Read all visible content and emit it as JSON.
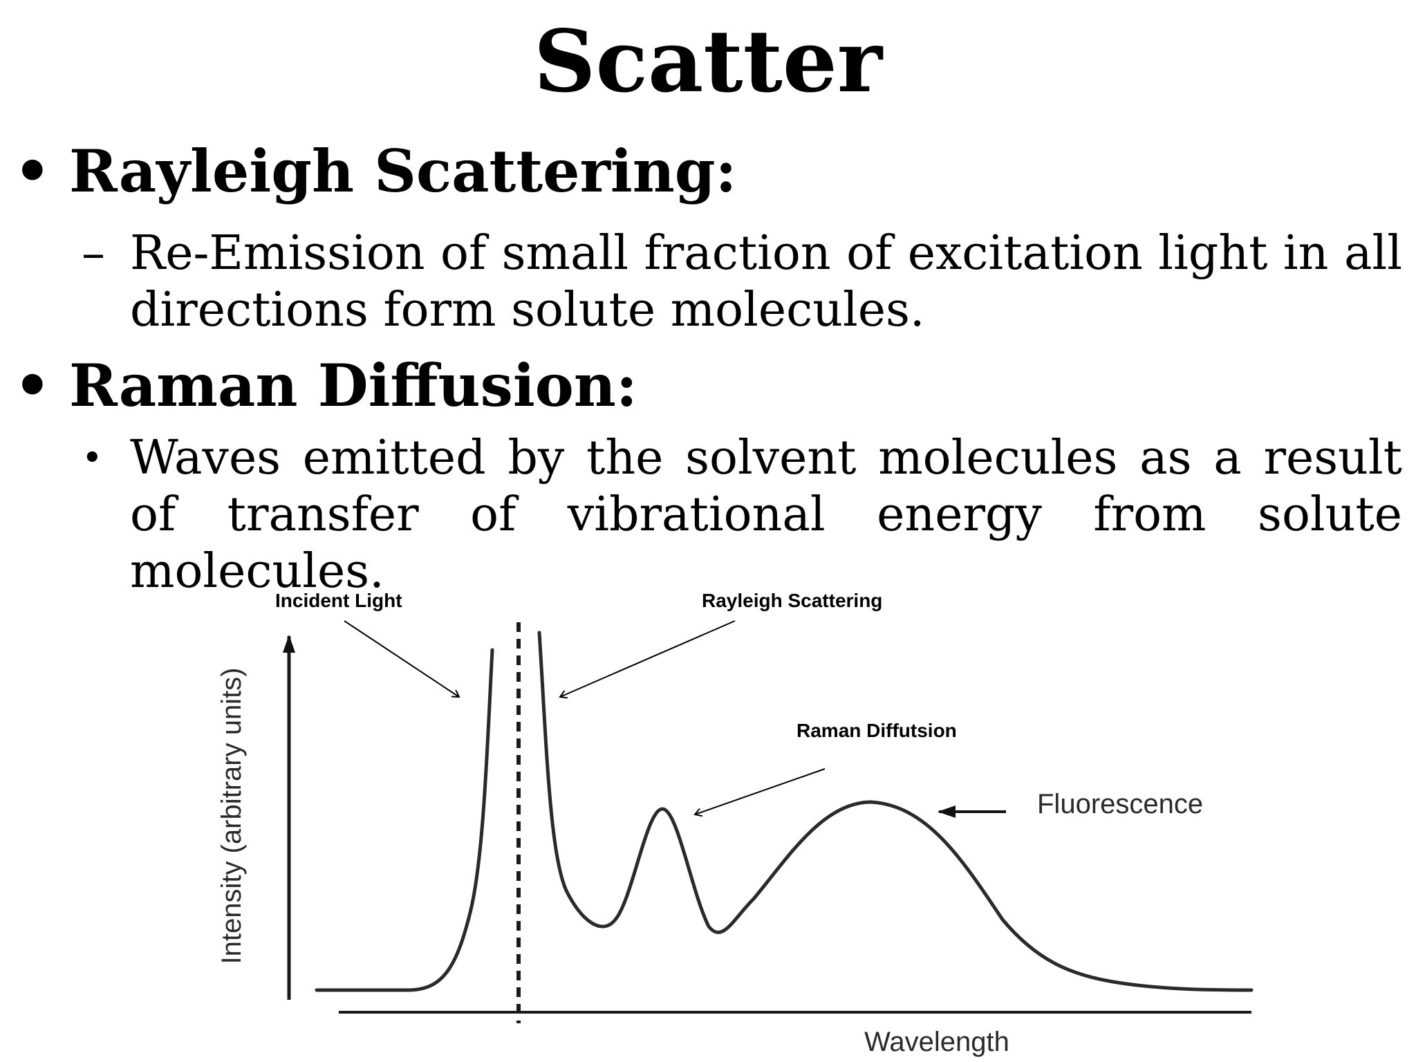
{
  "title": "Scatter",
  "bullets": [
    {
      "marker": "•",
      "heading": "Rayleigh Scattering:",
      "sub_marker": "–",
      "text": "Re-Emission of small fraction of excitation light in all directions form solute molecules."
    },
    {
      "marker": "•",
      "heading": "Raman Diffusion:",
      "sub_marker": "•",
      "text": "Waves emitted by the solvent molecules as a result of transfer of vibrational energy from solute molecules."
    }
  ],
  "diagram": {
    "labels": {
      "incident_light": "Incident Light",
      "rayleigh_scattering": "Rayleigh Scattering",
      "raman_diffusion": "Raman Diffutsion",
      "fluorescence": "Fluorescence"
    },
    "ylabel": "Intensity (arbitrary units)",
    "xlabel": "Wavelength"
  }
}
